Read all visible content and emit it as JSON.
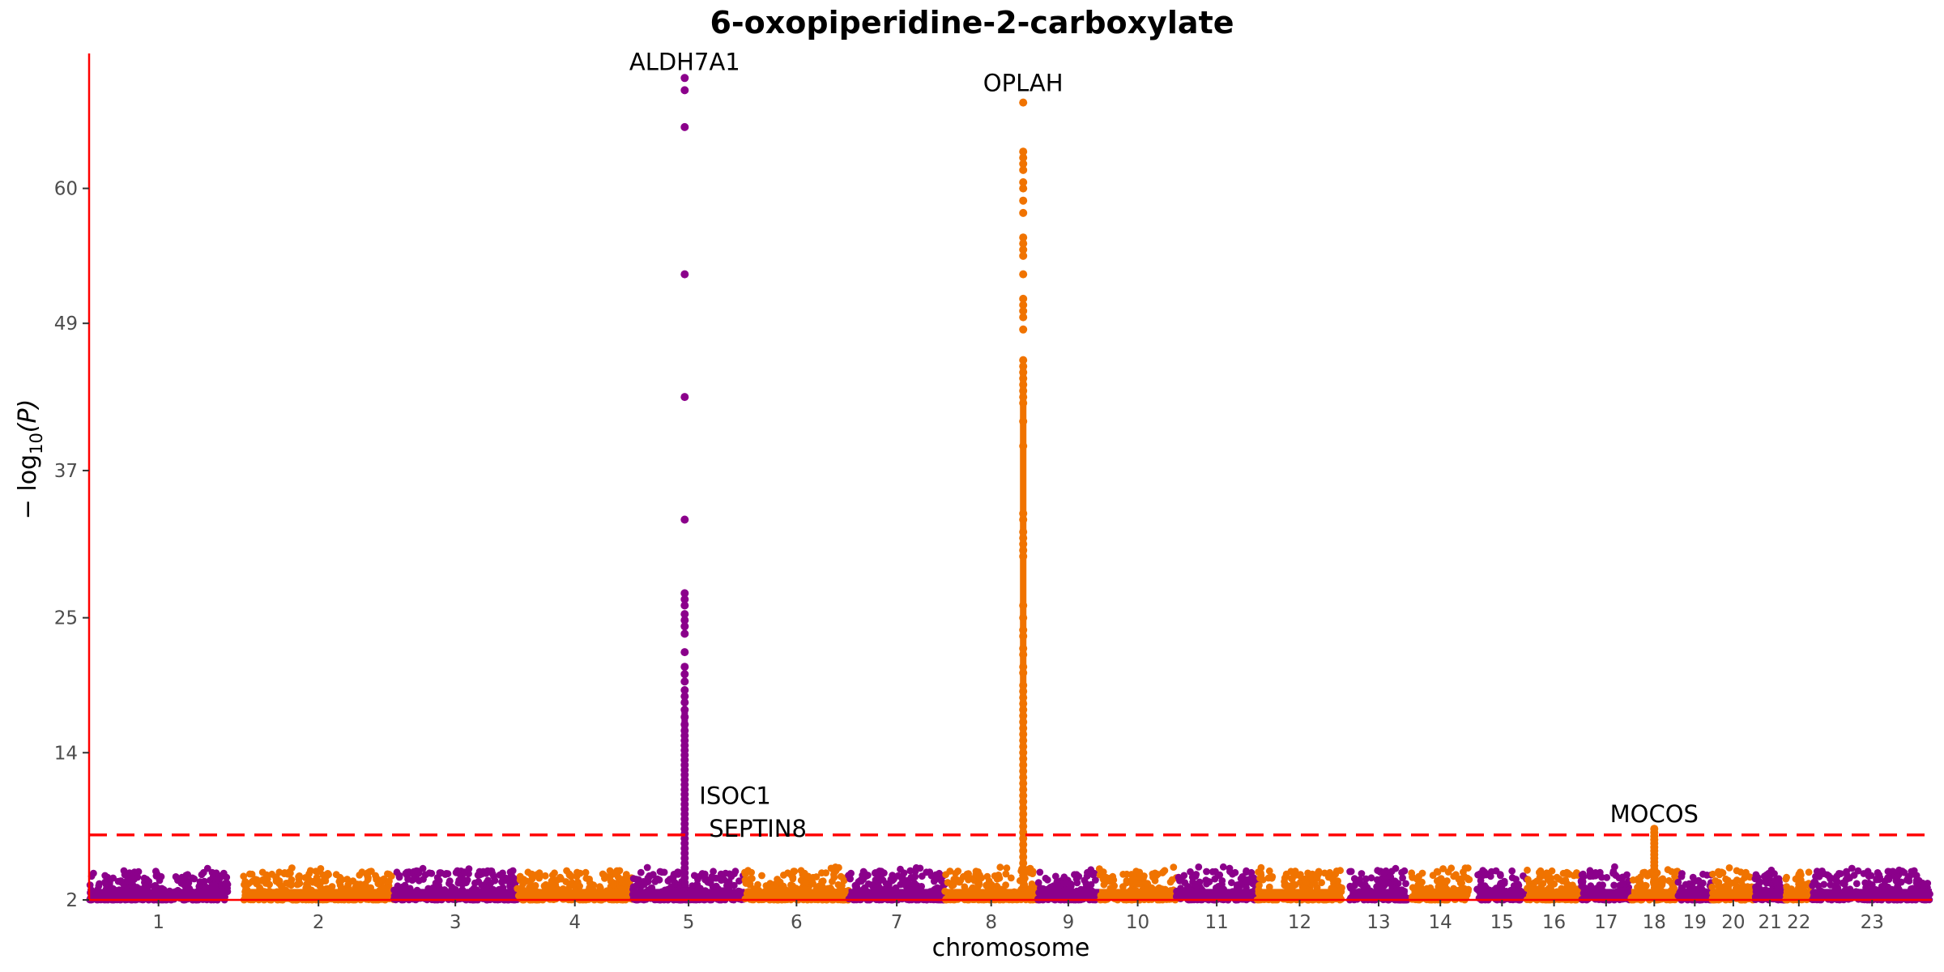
{
  "chart_data": {
    "type": "scatter",
    "subtype": "manhattan",
    "title": "6-oxopiperidine-2-carboxylate",
    "xlabel": "chromosome",
    "ylabel": "−log10(P)",
    "ylabel_parts": {
      "prefix": "− log",
      "subscript": "10",
      "suffix": "(P)"
    },
    "y_ticks": [
      2,
      14,
      25,
      37,
      49,
      60
    ],
    "ylim": [
      2,
      71
    ],
    "threshold_line": 7.3,
    "grid": false,
    "colors": {
      "odd_chromosomes": "#8b008b",
      "even_chromosomes": "#f07300",
      "threshold": "#ff0000",
      "axis": "#ff0000"
    },
    "chromosomes": [
      {
        "label": "1",
        "start": 0,
        "end": 36
      },
      {
        "label": "2",
        "start": 40,
        "end": 79
      },
      {
        "label": "3",
        "start": 79,
        "end": 111
      },
      {
        "label": "4",
        "start": 111,
        "end": 141
      },
      {
        "label": "5",
        "start": 141,
        "end": 170
      },
      {
        "label": "6",
        "start": 170,
        "end": 197
      },
      {
        "label": "7",
        "start": 197,
        "end": 222
      },
      {
        "label": "8",
        "start": 222,
        "end": 246
      },
      {
        "label": "9",
        "start": 246,
        "end": 262
      },
      {
        "label": "10",
        "start": 262,
        "end": 282
      },
      {
        "label": "11",
        "start": 282,
        "end": 303
      },
      {
        "label": "12",
        "start": 303,
        "end": 325
      },
      {
        "label": "13",
        "start": 327,
        "end": 342
      },
      {
        "label": "14",
        "start": 343,
        "end": 358
      },
      {
        "label": "15",
        "start": 360,
        "end": 373
      },
      {
        "label": "16",
        "start": 373,
        "end": 387
      },
      {
        "label": "17",
        "start": 387,
        "end": 400
      },
      {
        "label": "18",
        "start": 400,
        "end": 412
      },
      {
        "label": "19",
        "start": 412,
        "end": 421
      },
      {
        "label": "20",
        "start": 421,
        "end": 432
      },
      {
        "label": "21",
        "start": 432,
        "end": 440
      },
      {
        "label": "22",
        "start": 440,
        "end": 447
      },
      {
        "label": "23",
        "start": 447,
        "end": 478
      }
    ],
    "peaks": [
      {
        "gene": "ALDH7A1",
        "chromosome": "5",
        "max_log10p": 69,
        "values": [
          69,
          68,
          65,
          53,
          43,
          33,
          27,
          26.5,
          26,
          25.3,
          24.8,
          24.3,
          23.7,
          22.2,
          21,
          20.4,
          19.8,
          19.1,
          18.6,
          18.1,
          17.5,
          16.9,
          16.3,
          15.8,
          15.4,
          15,
          14.6,
          14.2,
          13.8,
          13.4,
          13,
          12.6,
          12.2,
          11.8,
          11.4,
          11,
          10.6,
          10.2,
          9.8,
          9.4,
          9,
          8.6,
          8.2,
          7.8,
          7.4,
          7,
          6.6,
          6.2,
          5.8,
          5.4,
          5,
          4.6,
          4.2,
          3.8,
          3.4,
          3
        ]
      },
      {
        "gene": "ISOC1",
        "chromosome": "5",
        "max_log10p": 10.5,
        "values": []
      },
      {
        "gene": "SEPTIN8",
        "chromosome": "5",
        "max_log10p": 7.8,
        "values": []
      },
      {
        "gene": "OPLAH",
        "chromosome": "8",
        "max_log10p": 67,
        "values": [
          67,
          63,
          62.5,
          62,
          61.5,
          60.5,
          60,
          59,
          58,
          56,
          55.5,
          55,
          54.5,
          53,
          51,
          50.5,
          50,
          49.5,
          48.5,
          46,
          45.5,
          45,
          44.5,
          44,
          43.5,
          43,
          42.5,
          41,
          39,
          33.5,
          33,
          32,
          31.5,
          31,
          30.5,
          30,
          26,
          25,
          24,
          23.5,
          22.5,
          22,
          21,
          20.5,
          19.5,
          19,
          18.5,
          18,
          17.5,
          17,
          16.5,
          16,
          15.5,
          15,
          14.5,
          14,
          13.5,
          13,
          12.5,
          12,
          11.5,
          11,
          10.5,
          10,
          9.5,
          9,
          8.5,
          8,
          7.5,
          7,
          6.5,
          6,
          5.5,
          5,
          4.5,
          4,
          3.5,
          3
        ]
      },
      {
        "gene": "MOCOS",
        "chromosome": "18",
        "max_log10p": 7.8,
        "values": [
          7.8,
          7.5,
          7.2,
          6.9,
          6.6,
          6.3,
          6,
          5.7,
          5.4,
          5.1,
          4.8,
          4.5,
          4.2,
          3.9,
          3.6,
          3.3
        ]
      }
    ]
  }
}
